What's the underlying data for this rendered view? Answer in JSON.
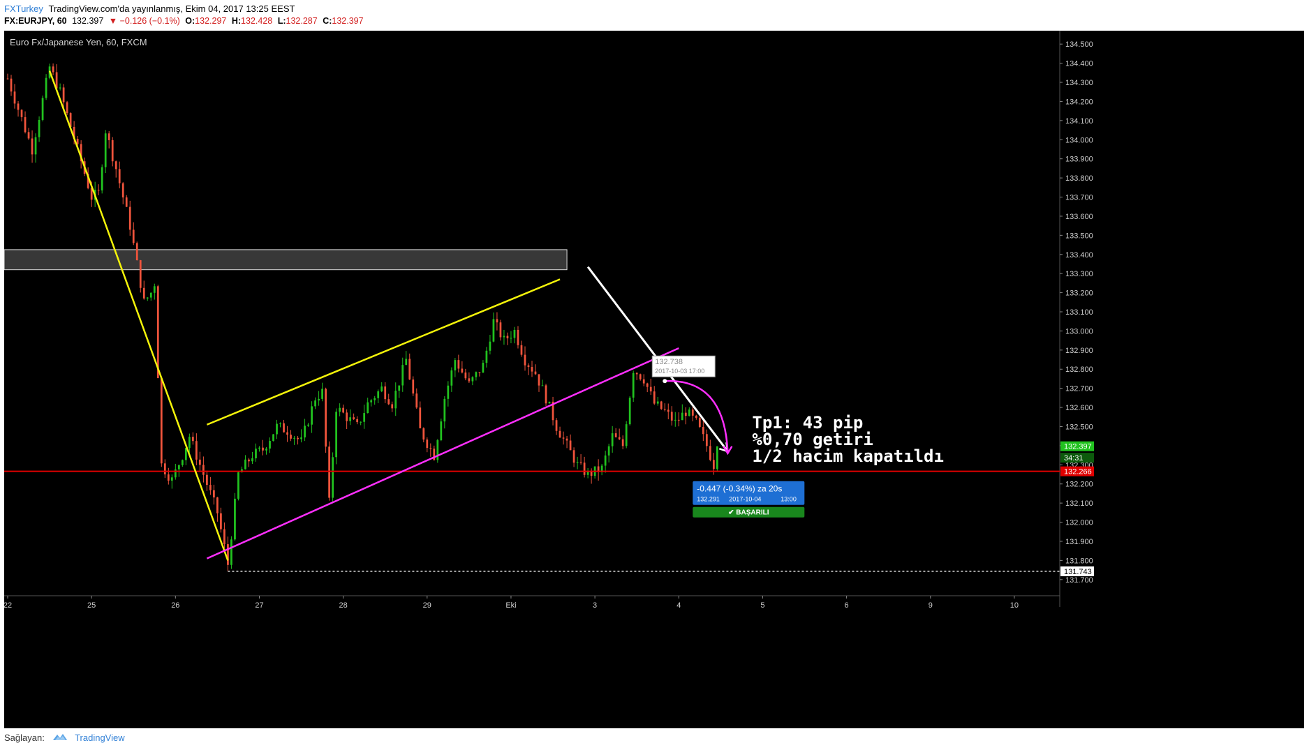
{
  "header": {
    "brand": "FXTurkey",
    "published": "TradingView.com'da yayınlanmış, Ekim 04, 2017 13:25 EEST",
    "symbol": "FX:EURJPY, 60",
    "last": "132.397",
    "change": "▼ −0.126 (−0.1%)",
    "o_label": "O:",
    "o": "132.297",
    "h_label": "H:",
    "h": "132.428",
    "l_label": "L:",
    "l": "132.287",
    "c_label": "C:",
    "c": "132.397"
  },
  "chart_title": "Euro Fx/Japanese Yen, 60, FXCM",
  "footer": {
    "label": "Sağlayan:",
    "brand": "TradingView"
  },
  "colors": {
    "background": "#000000",
    "up_candle": "#21c21f",
    "down_candle": "#f0543c",
    "yellow_line": "#f4f40a",
    "magenta_line": "#ff2fff",
    "white_arrow": "#ffffff",
    "red_level": "#e10000",
    "badge_blue": "#1e6fd4",
    "badge_green": "#19871d"
  },
  "chart_data": {
    "type": "candlestick",
    "symbol": "EURJPY",
    "timeframe": "60",
    "y_range": [
      131.63,
      134.57
    ],
    "y_ticks": [
      "134.500",
      "134.400",
      "134.300",
      "134.200",
      "134.100",
      "134.000",
      "133.900",
      "133.800",
      "133.700",
      "133.600",
      "133.500",
      "133.400",
      "133.300",
      "133.200",
      "133.100",
      "133.000",
      "132.900",
      "132.800",
      "132.700",
      "132.600",
      "132.500",
      "132.400",
      "132.300",
      "132.200",
      "132.100",
      "132.000",
      "131.900",
      "131.800",
      "131.700"
    ],
    "x_ticks": [
      {
        "label": "22",
        "t": 0
      },
      {
        "label": "25",
        "t": 24
      },
      {
        "label": "26",
        "t": 48
      },
      {
        "label": "27",
        "t": 72
      },
      {
        "label": "28",
        "t": 96
      },
      {
        "label": "29",
        "t": 120
      },
      {
        "label": "Eki",
        "t": 144
      },
      {
        "label": "3",
        "t": 168
      },
      {
        "label": "4",
        "t": 192
      },
      {
        "label": "5",
        "t": 216
      },
      {
        "label": "6",
        "t": 240
      },
      {
        "label": "9",
        "t": 264
      },
      {
        "label": "10",
        "t": 288
      }
    ],
    "x_range": [
      -1,
      301
    ],
    "anchors": [
      [
        0,
        134.32
      ],
      [
        7,
        133.95
      ],
      [
        12,
        134.38
      ],
      [
        15,
        134.25
      ],
      [
        20,
        133.95
      ],
      [
        24,
        133.7
      ],
      [
        26,
        133.72
      ],
      [
        28,
        134.05
      ],
      [
        31,
        133.85
      ],
      [
        35,
        133.55
      ],
      [
        39,
        133.15
      ],
      [
        41,
        133.2
      ],
      [
        42,
        133.25
      ],
      [
        44,
        132.3
      ],
      [
        47,
        132.22
      ],
      [
        50,
        132.35
      ],
      [
        52,
        132.45
      ],
      [
        56,
        132.25
      ],
      [
        60,
        132.05
      ],
      [
        63,
        131.78
      ],
      [
        66,
        132.25
      ],
      [
        70,
        132.35
      ],
      [
        73,
        132.38
      ],
      [
        77,
        132.5
      ],
      [
        80,
        132.48
      ],
      [
        84,
        132.42
      ],
      [
        88,
        132.65
      ],
      [
        90,
        132.68
      ],
      [
        92,
        132.1
      ],
      [
        94,
        132.6
      ],
      [
        97,
        132.55
      ],
      [
        100,
        132.5
      ],
      [
        103,
        132.62
      ],
      [
        107,
        132.7
      ],
      [
        110,
        132.62
      ],
      [
        114,
        132.85
      ],
      [
        118,
        132.48
      ],
      [
        122,
        132.35
      ],
      [
        125,
        132.65
      ],
      [
        128,
        132.85
      ],
      [
        132,
        132.72
      ],
      [
        136,
        132.82
      ],
      [
        139,
        133.05
      ],
      [
        142,
        132.95
      ],
      [
        145,
        133.0
      ],
      [
        148,
        132.85
      ],
      [
        151,
        132.78
      ],
      [
        154,
        132.65
      ],
      [
        157,
        132.5
      ],
      [
        160,
        132.4
      ],
      [
        163,
        132.3
      ],
      [
        166,
        132.25
      ],
      [
        170,
        132.28
      ],
      [
        173,
        132.45
      ],
      [
        176,
        132.4
      ],
      [
        179,
        132.8
      ],
      [
        182,
        132.75
      ],
      [
        185,
        132.62
      ],
      [
        188,
        132.58
      ],
      [
        191,
        132.52
      ],
      [
        194,
        132.58
      ],
      [
        197,
        132.52
      ],
      [
        200,
        132.4
      ],
      [
        202,
        132.3
      ],
      [
        203,
        132.397
      ]
    ],
    "yellow_downtrend": [
      [
        12,
        134.36
      ],
      [
        63,
        131.8
      ]
    ],
    "yellow_channel_top": [
      [
        57,
        132.51
      ],
      [
        158,
        133.27
      ]
    ],
    "magenta_channel_bottom": [
      [
        57,
        131.81
      ],
      [
        192,
        132.91
      ]
    ],
    "white_arrow": [
      [
        166,
        133.335
      ],
      [
        206,
        132.37
      ]
    ],
    "magenta_arc": {
      "from": [
        188,
        132.738
      ],
      "to": [
        206,
        132.36
      ]
    },
    "resistance_zone": [
      133.32,
      133.425
    ],
    "support_level": 132.266,
    "low_level": 131.743,
    "price_labels": {
      "current": "132.397",
      "countdown": "34:31",
      "support": "132.266",
      "low": "131.743"
    },
    "marker": {
      "price": "132.738",
      "time": "2017-10-03 17:00"
    },
    "result": {
      "line1": "-0.447 (-0.34%) za 20s",
      "price": "132.291",
      "time": "2017-10-04",
      "hour": "13:00",
      "status": "✔ BAŞARILI"
    },
    "annotation": [
      "Tp1: 43 pip",
      "%0,70 getiri",
      "1/2 hacim kapatıldı"
    ]
  }
}
